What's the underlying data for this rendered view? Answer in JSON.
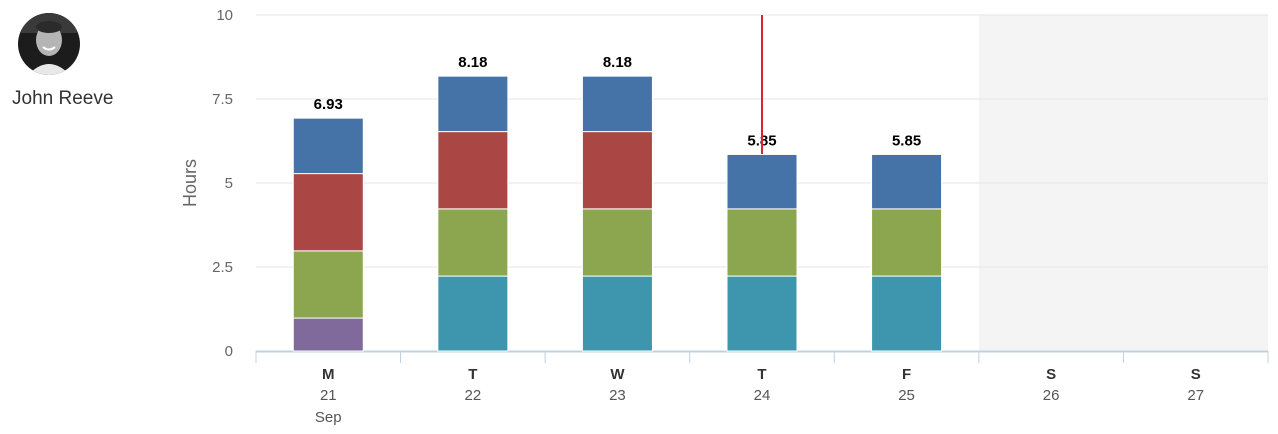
{
  "user": {
    "name": "John Reeve"
  },
  "chart_data": {
    "type": "bar",
    "stacked": true,
    "ylabel": "Hours",
    "ylim": [
      0,
      10
    ],
    "yticks": [
      "0",
      "2.5",
      "5",
      "7.5",
      "10"
    ],
    "categories": [
      {
        "day": "M",
        "date": "21",
        "month": "Sep"
      },
      {
        "day": "T",
        "date": "22",
        "month": ""
      },
      {
        "day": "W",
        "date": "23",
        "month": ""
      },
      {
        "day": "T",
        "date": "24",
        "month": ""
      },
      {
        "day": "F",
        "date": "25",
        "month": ""
      },
      {
        "day": "S",
        "date": "26",
        "month": ""
      },
      {
        "day": "S",
        "date": "27",
        "month": ""
      }
    ],
    "totals": [
      "6.93",
      "8.18",
      "8.18",
      "5.85",
      "5.85",
      "",
      ""
    ],
    "series": [
      {
        "color": "#7f6a9b",
        "values": [
          0.98,
          0,
          0,
          0,
          0,
          0,
          0
        ]
      },
      {
        "color": "#3e96ae",
        "values": [
          0,
          2.23,
          2.23,
          2.23,
          2.23,
          0,
          0
        ]
      },
      {
        "color": "#8ba64e",
        "values": [
          2.0,
          2.0,
          2.0,
          2.0,
          2.0,
          0,
          0
        ]
      },
      {
        "color": "#aa4644",
        "values": [
          2.3,
          2.3,
          2.3,
          0,
          0,
          0,
          0
        ]
      },
      {
        "color": "#4572a7",
        "values": [
          1.65,
          1.65,
          1.65,
          1.62,
          1.62,
          0,
          0
        ]
      }
    ],
    "weekend_shaded_from_index": 5,
    "today_marker_index": 3,
    "colors": {
      "grid": "#e6e6e6",
      "axis": "#c0d0e0",
      "weekend": "#f4f4f4",
      "today_line": "#e0222a"
    }
  }
}
